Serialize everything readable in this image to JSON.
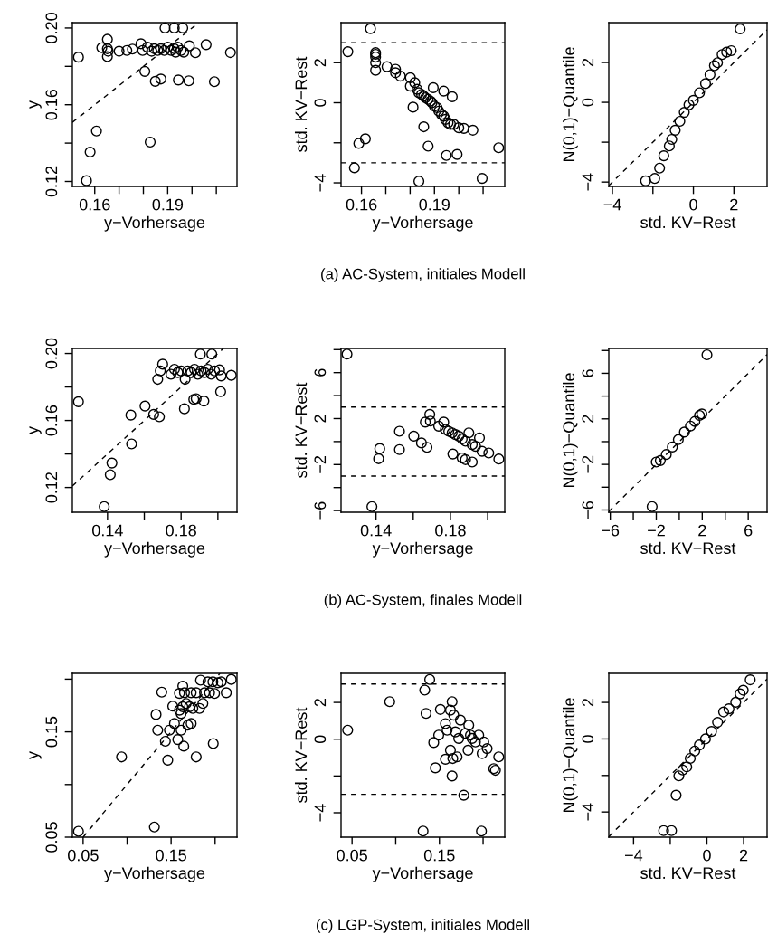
{
  "chart_data": [
    {
      "type": "scatter",
      "xlabel": "y−Vorhersage",
      "ylabel": "y",
      "xlim": [
        0.1508,
        0.2185
      ],
      "ylim": [
        0.1174,
        0.2028
      ],
      "xticks": [
        0.16,
        {
          "value": 0.17,
          "label": null
        },
        {
          "value": 0.18,
          "label": null
        },
        0.19,
        {
          "value": 0.2,
          "label": null
        },
        {
          "value": 0.21,
          "label": null
        }
      ],
      "yticks": [
        {
          "value": 0.12,
          "label": "0.12"
        },
        {
          "value": 0.14,
          "label": null
        },
        {
          "value": 0.16,
          "label": "0.16"
        },
        {
          "value": 0.18,
          "label": null
        },
        {
          "value": 0.2,
          "label": "0.20"
        }
      ],
      "series": [
        {
          "marker": "circle",
          "color": "#000000",
          "x": [
            0.1533,
            0.1566,
            0.1581,
            0.1607,
            0.1629,
            0.1652,
            0.1652,
            0.1652,
            0.1655,
            0.17,
            0.1732,
            0.1755,
            0.179,
            0.1797,
            0.1806,
            0.1828,
            0.1817,
            0.1834,
            0.1845,
            0.1859,
            0.1872,
            0.1886,
            0.19,
            0.1914,
            0.1927,
            0.1941,
            0.1955,
            0.1966,
            0.1933,
            0.1849,
            0.1872,
            0.1889,
            0.1927,
            0.1962,
            0.1944,
            0.1987,
            0.1989,
            0.2014,
            0.2058,
            0.2092,
            0.2158
          ],
          "values": [
            0.1848,
            0.1204,
            0.1353,
            0.1463,
            0.1897,
            0.1941,
            0.1892,
            0.1851,
            0.1879,
            0.1879,
            0.1883,
            0.189,
            0.1918,
            0.1883,
            0.1774,
            0.1405,
            0.19,
            0.1879,
            0.1892,
            0.1883,
            0.1892,
            0.1883,
            0.19,
            0.1883,
            0.1892,
            0.19,
            0.1883,
            0.1874,
            0.1874,
            0.1722,
            0.1734,
            0.2,
            0.2,
            0.2,
            0.1729,
            0.1725,
            0.1907,
            0.1871,
            0.1913,
            0.172,
            0.1872
          ]
        },
        {
          "type": "line",
          "line_style": "dashed",
          "color": "#000000",
          "x": [
            0.1508,
            0.2028
          ],
          "values": [
            0.1508,
            0.2028
          ]
        }
      ]
    },
    {
      "type": "scatter",
      "xlabel": "y−Vorhersage",
      "ylabel": "std. KV−Rest",
      "xlim": [
        0.1516,
        0.2189
      ],
      "ylim": [
        -4.18,
        4.0
      ],
      "xticks": [
        0.16,
        {
          "value": 0.17,
          "label": null
        },
        {
          "value": 0.18,
          "label": null
        },
        0.19,
        {
          "value": 0.2,
          "label": null
        },
        {
          "value": 0.21,
          "label": null
        }
      ],
      "yticks": [
        {
          "value": -4,
          "label": "−4"
        },
        {
          "value": -2,
          "label": null
        },
        0,
        2
      ],
      "ref_lines": [
        {
          "axis": "y",
          "value": 3,
          "line_style": "dashed",
          "color": "#000000"
        },
        {
          "axis": "y",
          "value": -3,
          "line_style": "dashed",
          "color": "#000000"
        }
      ],
      "annotations": [
        "(a) AC-System, initiales Modell"
      ],
      "series": [
        {
          "marker": "circle",
          "color": "#000000",
          "x": [
            0.1544,
            0.1571,
            0.1589,
            0.1616,
            0.1637,
            0.1658,
            0.1658,
            0.1658,
            0.1658,
            0.1658,
            0.1705,
            0.174,
            0.174,
            0.176,
            0.1801,
            0.1819,
            0.1801,
            0.1812,
            0.1829,
            0.1836,
            0.1847,
            0.1856,
            0.1863,
            0.1874,
            0.1884,
            0.189,
            0.19,
            0.1911,
            0.1918,
            0.1929,
            0.1938,
            0.1945,
            0.1956,
            0.1966,
            0.1979,
            0.2,
            0.2021,
            0.2058,
            0.1895,
            0.1938,
            0.1973,
            0.1856,
            0.1874,
            0.1949,
            0.1993,
            0.2096,
            0.1836,
            0.2164
          ],
          "values": [
            2.55,
            -3.25,
            -2.03,
            -1.8,
            3.7,
            2.5,
            2.42,
            2.28,
            2.0,
            1.62,
            1.8,
            1.67,
            1.5,
            1.33,
            1.25,
            1.0,
            0.83,
            -0.22,
            0.67,
            0.5,
            0.42,
            0.33,
            0.25,
            0.17,
            0.08,
            0,
            -0.17,
            -0.25,
            -0.42,
            -0.58,
            -0.67,
            -0.83,
            -1.0,
            -1.08,
            -1.08,
            -1.25,
            -1.28,
            -1.37,
            0.75,
            0.58,
            0.3,
            -1.2,
            -2.17,
            -2.63,
            -2.58,
            -3.78,
            -3.92,
            -2.25
          ]
        }
      ]
    },
    {
      "type": "scatter",
      "xlabel": "std. KV−Rest",
      "ylabel": "N(0,1)−Quantile",
      "xlim": [
        -4.18,
        3.64
      ],
      "ylim": [
        -4.22,
        4.0
      ],
      "xticks": [
        {
          "value": -4,
          "label": "−4"
        },
        {
          "value": -2,
          "label": null
        },
        0,
        2
      ],
      "yticks": [
        {
          "value": -4,
          "label": "−4"
        },
        {
          "value": -2,
          "label": null
        },
        0,
        2
      ],
      "series": [
        {
          "marker": "circle",
          "color": "#000000",
          "x": [
            -2.36,
            -1.91,
            -1.67,
            -1.46,
            -1.19,
            -1.07,
            -0.9,
            -0.67,
            -0.45,
            -0.22,
            0,
            0.3,
            0.6,
            0.82,
            1.04,
            1.19,
            1.42,
            1.64,
            1.87,
            2.31
          ],
          "values": [
            -3.94,
            -3.82,
            -3.3,
            -2.68,
            -2.19,
            -1.86,
            -1.4,
            -0.95,
            -0.5,
            -0.12,
            0.1,
            0.48,
            0.94,
            1.39,
            1.84,
            1.99,
            2.4,
            2.52,
            2.59,
            3.68
          ]
        },
        {
          "type": "line",
          "line_style": "dashed",
          "color": "#000000",
          "x": [
            -4.18,
            3.64
          ],
          "values": [
            -4.18,
            3.64
          ]
        }
      ]
    },
    {
      "type": "scatter",
      "xlabel": "y−Vorhersage",
      "ylabel": "y",
      "xlim": [
        0.1209,
        0.2104
      ],
      "ylim": [
        0.1052,
        0.203
      ],
      "xticks": [
        0.14,
        {
          "value": 0.16,
          "label": null
        },
        0.18,
        {
          "value": 0.2,
          "label": null
        }
      ],
      "yticks": [
        {
          "value": 0.12,
          "label": "0.12"
        },
        {
          "value": 0.14,
          "label": null
        },
        {
          "value": 0.16,
          "label": "0.16"
        },
        {
          "value": 0.18,
          "label": null
        },
        {
          "value": 0.2,
          "label": "0.20"
        }
      ],
      "series": [
        {
          "marker": "circle",
          "color": "#000000",
          "x": [
            0.1242,
            0.1382,
            0.1424,
            0.1415,
            0.1531,
            0.1527,
            0.1604,
            0.1651,
            0.1682,
            0.1673,
            0.1687,
            0.17,
            0.1745,
            0.1764,
            0.1782,
            0.18,
            0.1822,
            0.1836,
            0.1855,
            0.1873,
            0.1891,
            0.1909,
            0.1927,
            0.1945,
            0.1964,
            0.1982,
            0.2009,
            0.2018,
            0.2073,
            0.1818,
            0.1869,
            0.1882,
            0.1924,
            0.1905,
            0.1967,
            0.2015
          ],
          "values": [
            0.1712,
            0.1086,
            0.1346,
            0.1276,
            0.146,
            0.1632,
            0.1686,
            0.1636,
            0.1622,
            0.1846,
            0.1896,
            0.1936,
            0.1876,
            0.1906,
            0.1886,
            0.1896,
            0.1846,
            0.1896,
            0.1886,
            0.1906,
            0.1876,
            0.1896,
            0.1886,
            0.1906,
            0.1876,
            0.1896,
            0.1902,
            0.1866,
            0.187,
            0.167,
            0.1726,
            0.173,
            0.1716,
            0.1996,
            0.1996,
            0.1772
          ]
        },
        {
          "type": "line",
          "line_style": "dashed",
          "color": "#000000",
          "x": [
            0.1209,
            0.203
          ],
          "values": [
            0.1209,
            0.203
          ]
        }
      ]
    },
    {
      "type": "scatter",
      "xlabel": "y−Vorhersage",
      "ylabel": "std. KV−Rest",
      "xlim": [
        0.1212,
        0.2092
      ],
      "ylim": [
        -6.15,
        8.1
      ],
      "xticks": [
        0.14,
        {
          "value": 0.16,
          "label": null
        },
        0.18,
        {
          "value": 0.2,
          "label": null
        }
      ],
      "yticks": [
        {
          "value": -6,
          "label": "−6"
        },
        {
          "value": -4,
          "label": null
        },
        {
          "value": -2,
          "label": "−2"
        },
        {
          "value": 0,
          "label": null
        },
        2,
        {
          "value": 4,
          "label": null
        },
        6,
        {
          "value": 8,
          "label": null
        }
      ],
      "ref_lines": [
        {
          "axis": "y",
          "value": 3,
          "line_style": "dashed",
          "color": "#000000"
        },
        {
          "axis": "y",
          "value": -3,
          "line_style": "dashed",
          "color": "#000000"
        }
      ],
      "annotations": [
        "(b) AC-System, finales Modell"
      ],
      "series": [
        {
          "marker": "circle",
          "color": "#000000",
          "x": [
            0.1244,
            0.1378,
            0.142,
            0.1414,
            0.1526,
            0.1526,
            0.1603,
            0.1644,
            0.1674,
            0.1665,
            0.1689,
            0.1692,
            0.1737,
            0.1764,
            0.1773,
            0.1791,
            0.1809,
            0.1827,
            0.1845,
            0.1863,
            0.1881,
            0.1899,
            0.1917,
            0.1935,
            0.1956,
            0.197,
            0.2006,
            0.206,
            0.1813,
            0.1863,
            0.1881,
            0.1917
          ],
          "values": [
            7.61,
            -5.66,
            -0.61,
            -1.49,
            0.9,
            -0.7,
            0.47,
            -0.12,
            -0.5,
            1.69,
            2.36,
            1.78,
            1.34,
            1.69,
            1.05,
            0.9,
            0.76,
            0.61,
            0.47,
            0.23,
            0.03,
            0.76,
            -0.26,
            -0.41,
            0.32,
            -0.85,
            -0.99,
            -1.52,
            -1.08,
            -1.43,
            -1.57,
            -1.78
          ]
        }
      ]
    },
    {
      "type": "scatter",
      "xlabel": "std. KV−Rest",
      "ylabel": "N(0,1)−Quantile",
      "xlim": [
        -6.13,
        7.64
      ],
      "ylim": [
        -6.2,
        8.18
      ],
      "xticks": [
        {
          "value": -6,
          "label": "−6"
        },
        {
          "value": -4,
          "label": null
        },
        {
          "value": -2,
          "label": "−2"
        },
        {
          "value": 0,
          "label": null
        },
        2,
        {
          "value": 4,
          "label": null
        },
        6
      ],
      "yticks": [
        {
          "value": -6,
          "label": "−6"
        },
        {
          "value": -4,
          "label": null
        },
        {
          "value": -2,
          "label": "−2"
        },
        {
          "value": 0,
          "label": null
        },
        2,
        {
          "value": 4,
          "label": null
        },
        6,
        {
          "value": 8,
          "label": null
        }
      ],
      "series": [
        {
          "marker": "circle",
          "color": "#000000",
          "x": [
            -2.36,
            -2.0,
            -1.65,
            -1.13,
            -0.6,
            -0.08,
            0.45,
            0.97,
            1.36,
            1.76,
            1.97,
            2.41
          ],
          "values": [
            -5.7,
            -1.79,
            -1.66,
            -1.13,
            -0.47,
            0.18,
            0.84,
            1.37,
            1.77,
            2.3,
            2.43,
            7.62
          ]
        },
        {
          "type": "line",
          "line_style": "dashed",
          "color": "#000000",
          "x": [
            -6.13,
            7.64
          ],
          "values": [
            -6.13,
            7.64
          ]
        }
      ]
    },
    {
      "type": "scatter",
      "xlabel": "y−Vorhersage",
      "ylabel": "y",
      "xlim": [
        0.0378,
        0.2249
      ],
      "ylim": [
        0.05,
        0.2055
      ],
      "xticks": [
        0.05,
        {
          "value": 0.1,
          "label": null
        },
        0.15,
        {
          "value": 0.2,
          "label": null
        }
      ],
      "yticks": [
        0.05,
        {
          "value": 0.1,
          "label": null
        },
        0.15,
        {
          "value": 0.2,
          "label": null
        }
      ],
      "series": [
        {
          "marker": "circle",
          "color": "#000000",
          "x": [
            0.0447,
            0.0937,
            0.131,
            0.1394,
            0.1329,
            0.1348,
            0.1435,
            0.1462,
            0.1481,
            0.1519,
            0.1538,
            0.1576,
            0.1595,
            0.1614,
            0.1633,
            0.1614,
            0.1644,
            0.1595,
            0.1633,
            0.1652,
            0.1671,
            0.169,
            0.1709,
            0.1728,
            0.1747,
            0.1728,
            0.1785,
            0.1785,
            0.1823,
            0.1861,
            0.1835,
            0.188,
            0.1918,
            0.1937,
            0.1975,
            0.1994,
            0.2032,
            0.207,
            0.2127,
            0.2184,
            0.1979
          ],
          "values": [
            0.0556,
            0.1262,
            0.0597,
            0.1877,
            0.1665,
            0.1516,
            0.1411,
            0.1231,
            0.1516,
            0.1744,
            0.1579,
            0.1427,
            0.1706,
            0.1674,
            0.1738,
            0.1516,
            0.1364,
            0.1865,
            0.1934,
            0.1871,
            0.1769,
            0.1563,
            0.1738,
            0.1579,
            0.1722,
            0.1871,
            0.1262,
            0.1871,
            0.1722,
            0.1769,
            0.1991,
            0.1871,
            0.1975,
            0.1871,
            0.1975,
            0.1864,
            0.1966,
            0.1975,
            0.1871,
            0.1998,
            0.1389
          ]
        },
        {
          "type": "line",
          "line_style": "dashed",
          "color": "#000000",
          "x": [
            0.05,
            0.2055
          ],
          "values": [
            0.05,
            0.2055
          ]
        }
      ]
    },
    {
      "type": "scatter",
      "xlabel": "y−Vorhersage",
      "ylabel": "std. KV−Rest",
      "xlim": [
        0.0374,
        0.2248
      ],
      "ylim": [
        -5.33,
        3.58
      ],
      "xticks": [
        0.05,
        {
          "value": 0.1,
          "label": null
        },
        0.15,
        {
          "value": 0.2,
          "label": null
        }
      ],
      "yticks": [
        {
          "value": -4,
          "label": "−4"
        },
        {
          "value": -2,
          "label": null
        },
        0,
        2
      ],
      "ref_lines": [
        {
          "axis": "y",
          "value": 3,
          "line_style": "dashed",
          "color": "#000000"
        },
        {
          "axis": "y",
          "value": -3,
          "line_style": "dashed",
          "color": "#000000"
        }
      ],
      "annotations": [
        "(c) LGP-System, initiales Modell"
      ],
      "series": [
        {
          "marker": "circle",
          "color": "#000000",
          "x": [
            0.045,
            0.0931,
            0.1313,
            0.1389,
            0.1332,
            0.1347,
            0.1435,
            0.1454,
            0.1492,
            0.1511,
            0.1569,
            0.1588,
            0.1626,
            0.1645,
            0.1664,
            0.1626,
            0.1653,
            0.1569,
            0.1645,
            0.1683,
            0.1702,
            0.1721,
            0.174,
            0.1779,
            0.1798,
            0.1828,
            0.1836,
            0.1855,
            0.1874,
            0.1912,
            0.195,
            0.1989,
            0.2008,
            0.2046,
            0.1981,
            0.2122,
            0.2141,
            0.2179
          ],
          "values": [
            0.49,
            2.04,
            -5.0,
            3.25,
            2.67,
            1.4,
            -0.18,
            -1.56,
            0.22,
            1.62,
            0.85,
            0.49,
            1.58,
            2.04,
            1.31,
            -0.6,
            -1.05,
            -1.09,
            -2.0,
            0.4,
            -0.96,
            0.04,
            1.04,
            -3.05,
            0.31,
            -0.6,
            0.76,
            0.22,
            0.04,
            -0.15,
            0.22,
            -0.78,
            -0.15,
            -0.51,
            -5.0,
            -1.6,
            -1.69,
            -0.96
          ]
        }
      ]
    },
    {
      "type": "scatter",
      "xlabel": "std. KV−Rest",
      "ylabel": "N(0,1)−Quantile",
      "xlim": [
        -5.35,
        3.28
      ],
      "ylim": [
        -5.38,
        3.59
      ],
      "xticks": [
        {
          "value": -4,
          "label": "−4"
        },
        {
          "value": -2,
          "label": null
        },
        0,
        2
      ],
      "yticks": [
        {
          "value": -4,
          "label": "−4"
        },
        {
          "value": -2,
          "label": null
        },
        0,
        2
      ],
      "series": [
        {
          "marker": "circle",
          "color": "#000000",
          "x": [
            -2.36,
            -1.93,
            -1.68,
            -1.53,
            -1.32,
            -1.1,
            -0.91,
            -0.66,
            -0.41,
            -0.08,
            0.25,
            0.58,
            0.91,
            1.2,
            1.57,
            1.81,
            1.98,
            2.36
          ],
          "values": [
            -5.02,
            -5.02,
            -3.08,
            -2.02,
            -1.7,
            -1.53,
            -1.07,
            -0.66,
            -0.33,
            0,
            0.41,
            0.91,
            1.48,
            1.65,
            2.01,
            2.47,
            2.67,
            3.24
          ]
        },
        {
          "type": "line",
          "line_style": "dashed",
          "color": "#000000",
          "x": [
            -5.35,
            3.28
          ],
          "values": [
            -5.35,
            3.28
          ]
        }
      ]
    }
  ]
}
